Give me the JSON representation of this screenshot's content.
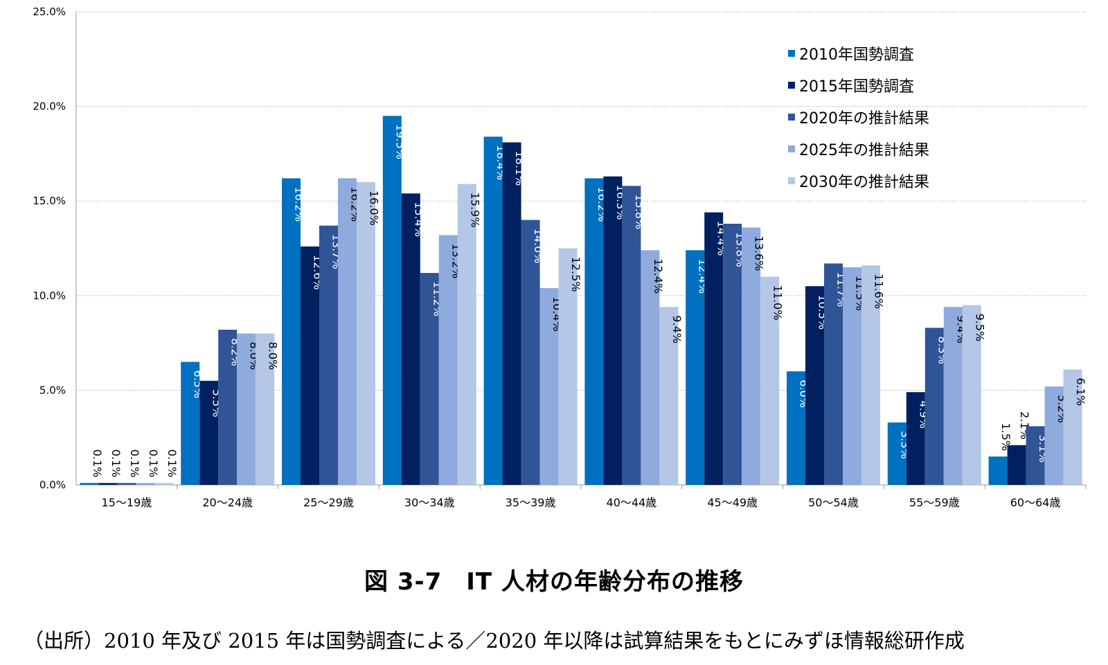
{
  "chart_data": {
    "type": "bar",
    "categories": [
      "15〜19歳",
      "20〜24歳",
      "25〜29歳",
      "30〜34歳",
      "35〜39歳",
      "40〜44歳",
      "45〜49歳",
      "50〜54歳",
      "55〜59歳",
      "60〜64歳"
    ],
    "series": [
      {
        "name": "2010年国勢調査",
        "color": "#0070C0",
        "values": [
          0.1,
          6.5,
          16.2,
          19.5,
          18.4,
          16.2,
          12.4,
          6.0,
          3.3,
          1.5
        ]
      },
      {
        "name": "2015年国勢調査",
        "color": "#002060",
        "values": [
          0.1,
          5.5,
          12.6,
          15.4,
          18.1,
          16.3,
          14.4,
          10.5,
          4.9,
          2.1
        ]
      },
      {
        "name": "2020年の推計結果",
        "color": "#2F5597",
        "values": [
          0.1,
          8.2,
          13.7,
          11.2,
          14.0,
          15.8,
          13.8,
          11.7,
          8.3,
          3.1
        ]
      },
      {
        "name": "2025年の推計結果",
        "color": "#8FAADC",
        "values": [
          0.1,
          8.0,
          16.2,
          13.2,
          10.4,
          12.4,
          13.6,
          11.5,
          9.4,
          5.2
        ]
      },
      {
        "name": "2030年の推計結果",
        "color": "#B4C7E7",
        "values": [
          0.1,
          8.0,
          16.0,
          15.9,
          12.5,
          9.4,
          11.0,
          11.6,
          9.5,
          6.1
        ]
      }
    ],
    "data_labels": [
      [
        "0.1%",
        "6.5%",
        "16.2%",
        "19.5%",
        "18.4%",
        "16.2%",
        "12.4%",
        "6.0%",
        "3.3%",
        "1.5%"
      ],
      [
        "0.1%",
        "5.5%",
        "12.6%",
        "15.4%",
        "18.1%",
        "16.3%",
        "14.4%",
        "10.5%",
        "4.9%",
        "2.1%"
      ],
      [
        "0.1%",
        "8.2%",
        "13.7%",
        "11.2%",
        "14.0%",
        "15.8%",
        "13.8%",
        "11.7%",
        "8.3%",
        "3.1%"
      ],
      [
        "0.1%",
        "8.0%",
        "16.2%",
        "13.2%",
        "10.4%",
        "12.4%",
        "13.6%",
        "11.5%",
        "9.4%",
        "5.2%"
      ],
      [
        "0.1%",
        "8.0%",
        "16.0%",
        "15.9%",
        "12.5%",
        "9.4%",
        "11.0%",
        "11.6%",
        "9.5%",
        "6.1%"
      ]
    ],
    "y_ticks": [
      0,
      5,
      10,
      15,
      20,
      25
    ],
    "y_tick_labels": [
      "0.0%",
      "5.0%",
      "10.0%",
      "15.0%",
      "20.0%",
      "25.0%"
    ],
    "ylim": [
      0,
      25
    ],
    "grid": true,
    "legend_position": "top-right",
    "label_color_dark": "#ffffff",
    "label_color_light": "#000000",
    "axis_color": "#999999",
    "grid_color": "#bbbbbb"
  },
  "caption": "図 3-7　IT 人材の年齢分布の推移",
  "source": "（出所）2010 年及び 2015 年は国勢調査による／2020 年以降は試算結果をもとにみずほ情報総研作成"
}
